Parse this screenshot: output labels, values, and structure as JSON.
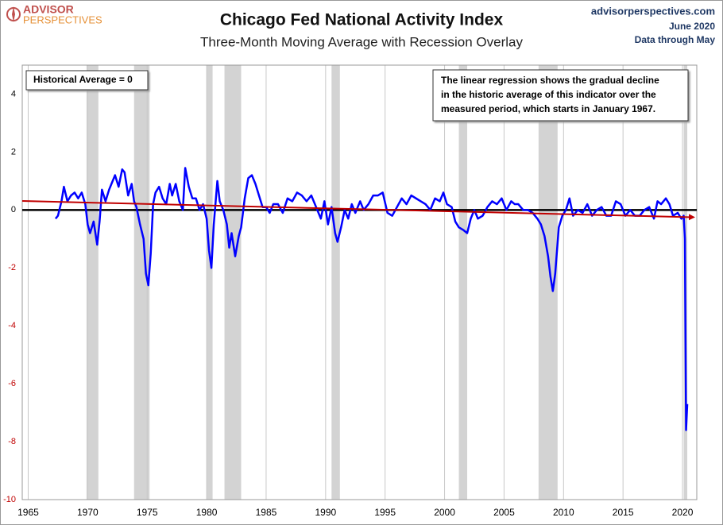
{
  "chart_data": {
    "type": "line",
    "title": "Chicago Fed National Activity Index",
    "subtitle": "Three-Month Moving Average with Recession Overlay",
    "source": "advisorperspectives.com",
    "date": "June 2020",
    "note": "Data through May",
    "logo": [
      "ADVISOR",
      "PERSPECTIVES"
    ],
    "regression_note": [
      "The linear regression shows the gradual decline",
      "in the historic average of this indicator over the",
      "measured period, which starts in January 1967."
    ],
    "x": [
      1967.3,
      1967.5,
      1967.8,
      1968.0,
      1968.3,
      1968.6,
      1968.9,
      1969.2,
      1969.5,
      1969.8,
      1970.0,
      1970.2,
      1970.5,
      1970.8,
      1971.0,
      1971.2,
      1971.5,
      1971.8,
      1972.0,
      1972.3,
      1972.6,
      1972.9,
      1973.1,
      1973.4,
      1973.7,
      1973.9,
      1974.1,
      1974.4,
      1974.7,
      1974.9,
      1975.1,
      1975.3,
      1975.5,
      1975.7,
      1976.0,
      1976.3,
      1976.6,
      1976.9,
      1977.1,
      1977.4,
      1977.7,
      1978.0,
      1978.2,
      1978.5,
      1978.8,
      1979.1,
      1979.4,
      1979.7,
      1980.0,
      1980.2,
      1980.4,
      1980.6,
      1980.9,
      1981.1,
      1981.4,
      1981.7,
      1981.9,
      1982.1,
      1982.4,
      1982.7,
      1982.9,
      1983.2,
      1983.5,
      1983.8,
      1984.1,
      1984.4,
      1984.7,
      1985.0,
      1985.3,
      1985.6,
      1986.0,
      1986.4,
      1986.8,
      1987.2,
      1987.6,
      1988.0,
      1988.4,
      1988.8,
      1989.2,
      1989.6,
      1989.9,
      1990.2,
      1990.5,
      1990.8,
      1991.0,
      1991.3,
      1991.6,
      1991.9,
      1992.2,
      1992.5,
      1992.9,
      1993.2,
      1993.6,
      1994.0,
      1994.4,
      1994.8,
      1995.2,
      1995.6,
      1996.0,
      1996.4,
      1996.8,
      1997.2,
      1997.6,
      1998.0,
      1998.4,
      1998.8,
      1999.2,
      1999.6,
      1999.9,
      2000.2,
      2000.6,
      2000.9,
      2001.2,
      2001.6,
      2001.9,
      2002.2,
      2002.5,
      2002.8,
      2003.2,
      2003.6,
      2004.0,
      2004.4,
      2004.8,
      2005.2,
      2005.6,
      2005.9,
      2006.2,
      2006.6,
      2007.0,
      2007.4,
      2007.8,
      2008.1,
      2008.4,
      2008.7,
      2008.9,
      2009.1,
      2009.3,
      2009.6,
      2009.9,
      2010.2,
      2010.5,
      2010.8,
      2011.2,
      2011.6,
      2012.0,
      2012.4,
      2012.8,
      2013.2,
      2013.6,
      2014.0,
      2014.4,
      2014.8,
      2015.2,
      2015.6,
      2016.0,
      2016.4,
      2016.8,
      2017.2,
      2017.6,
      2017.9,
      2018.2,
      2018.6,
      2018.9,
      2019.2,
      2019.6,
      2019.9,
      2020.1,
      2020.2,
      2020.3,
      2020.4
    ],
    "values": [
      -0.3,
      -0.2,
      0.3,
      0.8,
      0.3,
      0.5,
      0.6,
      0.4,
      0.6,
      0.2,
      -0.5,
      -0.8,
      -0.4,
      -1.2,
      -0.4,
      0.7,
      0.3,
      0.7,
      0.9,
      1.2,
      0.8,
      1.4,
      1.3,
      0.5,
      0.9,
      0.3,
      0.1,
      -0.5,
      -1.0,
      -2.2,
      -2.6,
      -1.5,
      0.2,
      0.6,
      0.8,
      0.4,
      0.2,
      0.9,
      0.5,
      0.9,
      0.3,
      0.0,
      1.45,
      0.8,
      0.4,
      0.4,
      0.0,
      0.2,
      -0.3,
      -1.4,
      -2.0,
      -0.5,
      1.0,
      0.3,
      0.0,
      -0.5,
      -1.3,
      -0.8,
      -1.6,
      -0.9,
      -0.6,
      0.4,
      1.1,
      1.2,
      0.9,
      0.5,
      0.1,
      0.1,
      -0.1,
      0.2,
      0.2,
      -0.1,
      0.4,
      0.3,
      0.6,
      0.5,
      0.3,
      0.5,
      0.1,
      -0.3,
      0.3,
      -0.5,
      0.1,
      -0.8,
      -1.1,
      -0.6,
      0.0,
      -0.3,
      0.2,
      -0.1,
      0.3,
      0.0,
      0.2,
      0.5,
      0.5,
      0.6,
      -0.1,
      -0.2,
      0.1,
      0.4,
      0.2,
      0.5,
      0.4,
      0.3,
      0.2,
      0.0,
      0.4,
      0.3,
      0.6,
      0.2,
      0.1,
      -0.4,
      -0.6,
      -0.7,
      -0.8,
      -0.3,
      0.0,
      -0.3,
      -0.2,
      0.1,
      0.3,
      0.2,
      0.4,
      0.0,
      0.3,
      0.2,
      0.2,
      0.0,
      0.0,
      -0.1,
      -0.3,
      -0.5,
      -0.9,
      -1.6,
      -2.3,
      -2.8,
      -2.2,
      -0.6,
      -0.2,
      0.0,
      0.4,
      -0.2,
      0.0,
      -0.1,
      0.2,
      -0.2,
      0.0,
      0.1,
      -0.2,
      -0.2,
      0.3,
      0.2,
      -0.2,
      0.0,
      -0.2,
      -0.2,
      0.0,
      0.1,
      -0.3,
      0.3,
      0.2,
      0.4,
      0.2,
      -0.2,
      -0.1,
      -0.3,
      -0.2,
      -1.0,
      -7.6,
      -6.7
    ],
    "color": "#0000ff",
    "trend": {
      "x": [
        1964.5,
        2020.8
      ],
      "values": [
        0.31,
        -0.25
      ],
      "color": "#c00000"
    },
    "reference_line": {
      "value": 0,
      "color": "#000000",
      "label": "Historical Average = 0"
    },
    "recessions": [
      [
        1969.9,
        1970.9
      ],
      [
        1973.9,
        1975.2
      ],
      [
        1980.0,
        1980.5
      ],
      [
        1981.5,
        1982.9
      ],
      [
        1990.5,
        1991.2
      ],
      [
        2001.2,
        2001.9
      ],
      [
        2007.9,
        2009.5
      ],
      [
        2020.1,
        2020.4
      ]
    ],
    "recession_color": "#d3d3d3",
    "xlim": [
      1964.5,
      2021.2
    ],
    "xticks": [
      1965,
      1970,
      1975,
      1980,
      1985,
      1990,
      1995,
      2000,
      2005,
      2010,
      2015,
      2020
    ],
    "ylim": [
      -10,
      5
    ],
    "yticks": [
      4,
      2,
      0,
      -2,
      -4,
      -6,
      -8,
      -10
    ],
    "negative_tick_color": "#c00000",
    "grid": "x"
  }
}
